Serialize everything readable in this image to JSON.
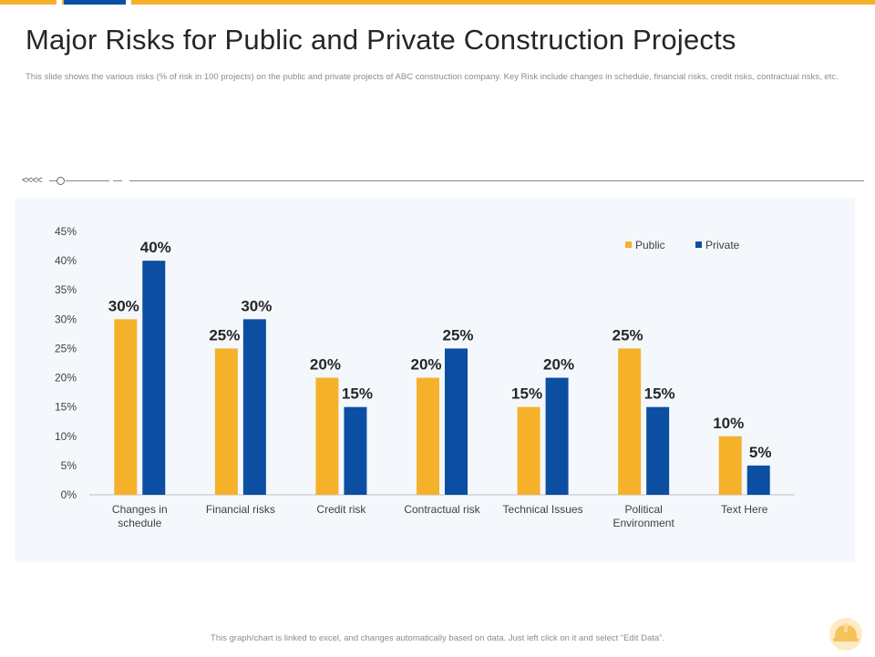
{
  "page": {
    "title": "Major Risks for Public and Private Construction Projects",
    "subtitle": "This slide shows the various risks (% of risk in 100 projects) on the public and private projects of ABC construction company. Key Risk include changes in schedule, financial risks, credit risks, contractual risks, etc.",
    "footer": "This graph/chart is linked to excel, and changes automatically based on data. Just left click on it and select “Edit Data”.",
    "divider_chevrons": "<<<<",
    "logo_icon": "hard-hat-icon"
  },
  "colors": {
    "accent": "#F6B12B",
    "navy": "#0B4EA2",
    "public": "#F6B12B",
    "private": "#0B4EA2",
    "panel": "#F4F8FC"
  },
  "chart_data": {
    "type": "bar",
    "title": "",
    "xlabel": "",
    "ylabel": "",
    "categories": [
      "Changes in schedule",
      "Financial risks",
      "Credit risk",
      "Contractual risk",
      "Technical Issues",
      "Political Environment",
      "Text Here"
    ],
    "series": [
      {
        "name": "Public",
        "color": "#F6B12B",
        "values": [
          30,
          25,
          20,
          20,
          15,
          25,
          10
        ]
      },
      {
        "name": "Private",
        "color": "#0B4EA2",
        "values": [
          40,
          30,
          15,
          25,
          20,
          15,
          5
        ]
      }
    ],
    "ylim": [
      0,
      45
    ],
    "yticks": [
      0,
      5,
      10,
      15,
      20,
      25,
      30,
      35,
      40,
      45
    ],
    "ytick_labels": [
      "0%",
      "5%",
      "10%",
      "15%",
      "20%",
      "25%",
      "30%",
      "35%",
      "40%",
      "45%"
    ],
    "data_labels": [
      [
        "30%",
        "25%",
        "20%",
        "20%",
        "15%",
        "25%",
        "10%"
      ],
      [
        "40%",
        "30%",
        "15%",
        "25%",
        "20%",
        "15%",
        "5%"
      ]
    ],
    "legend": {
      "position": "top-right",
      "entries": [
        "Public",
        "Private"
      ]
    },
    "grid": false
  }
}
